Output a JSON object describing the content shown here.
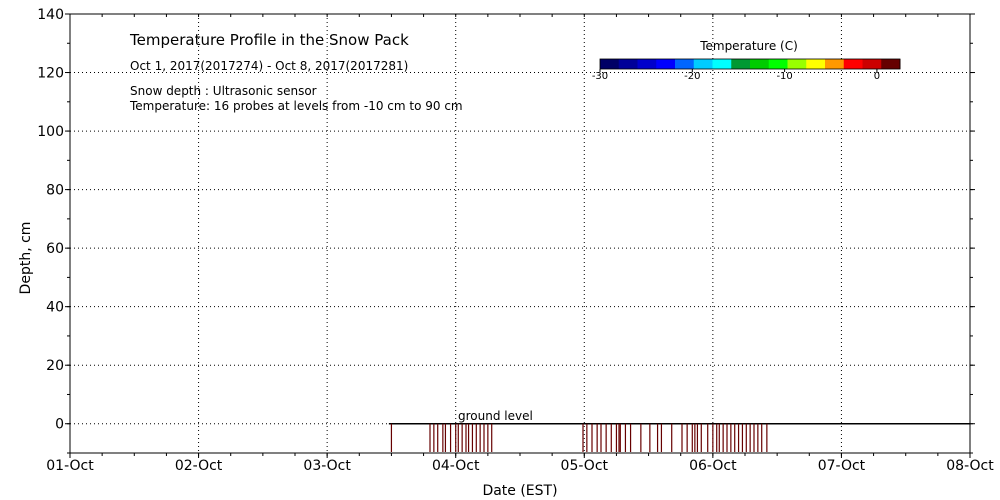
{
  "chart_data": {
    "type": "heatmap",
    "title": "Temperature Profile in the Snow Pack",
    "date_range": "Oct  1, 2017(2017274) - Oct  8, 2017(2017281)",
    "annotations": [
      "Snow depth : Ultrasonic sensor",
      "Temperature: 16 probes at levels from -10 cm to 90 cm"
    ],
    "ground_label": "ground level",
    "xlabel": "Date (EST)",
    "ylabel": "Depth, cm",
    "x_ticks": [
      "01-Oct",
      "02-Oct",
      "03-Oct",
      "04-Oct",
      "05-Oct",
      "06-Oct",
      "07-Oct",
      "08-Oct"
    ],
    "xlim": [
      0,
      7
    ],
    "ylim": [
      -10,
      140
    ],
    "y_ticks": [
      0,
      20,
      40,
      60,
      80,
      100,
      120,
      140
    ],
    "grid": true,
    "colorbar": {
      "title": "Temperature (C)",
      "ticks": [
        -30,
        -20,
        -10,
        0
      ],
      "range": [
        -30,
        2.5
      ],
      "colors": [
        "#000066",
        "#000099",
        "#0000cc",
        "#0000ff",
        "#0066ff",
        "#00ccff",
        "#00ffff",
        "#009933",
        "#00cc00",
        "#00ff00",
        "#99ff00",
        "#ffff00",
        "#ff9900",
        "#ff0000",
        "#cc0000",
        "#660000"
      ]
    },
    "ground_level_start": 2.48,
    "ground_level_end": 7.0,
    "probe_lines_x": [
      2.5,
      2.8,
      2.83,
      2.86,
      2.9,
      2.92,
      2.96,
      3.0,
      3.02,
      3.05,
      3.08,
      3.1,
      3.13,
      3.16,
      3.19,
      3.22,
      3.25,
      3.28,
      4.27,
      4.57,
      3.99,
      4.02,
      4.06,
      4.1,
      4.13,
      4.17,
      4.21,
      4.25,
      4.28,
      4.32,
      4.36,
      4.44,
      4.51,
      4.6,
      4.68,
      4.76,
      4.8,
      4.84,
      4.86,
      4.88,
      4.91,
      4.96,
      5.0,
      5.03,
      5.05,
      5.08,
      5.11,
      5.14,
      5.17,
      5.2,
      5.23,
      5.26,
      5.29,
      5.32,
      5.35,
      5.38,
      5.42
    ]
  }
}
